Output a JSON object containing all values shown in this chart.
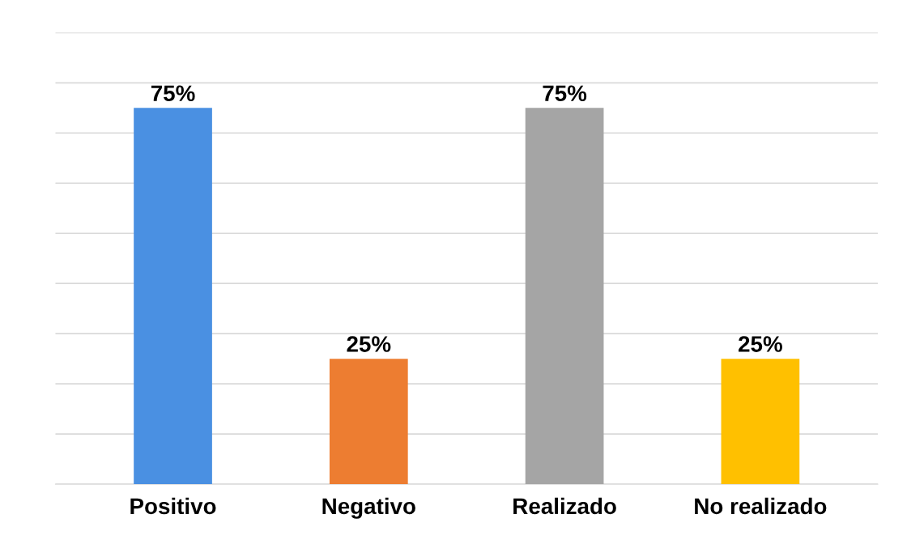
{
  "chart_data": {
    "type": "bar",
    "categories": [
      "Positivo",
      "Negativo",
      "Realizado",
      "No realizado"
    ],
    "values": [
      75,
      25,
      75,
      25
    ],
    "colors": [
      "#4a90e2",
      "#ed7d31",
      "#a5a5a5",
      "#ffc000"
    ],
    "value_labels": [
      "75%",
      "25%",
      "75%",
      "25%"
    ],
    "ylim": [
      0,
      90
    ],
    "yticks": [
      {
        "value": 0,
        "label": null
      },
      {
        "value": 10,
        "label": null
      },
      {
        "value": 20,
        "label": null
      },
      {
        "value": 30,
        "label": null
      },
      {
        "value": 40,
        "label": null
      },
      {
        "value": 50,
        "label": null
      },
      {
        "value": 60,
        "label": null
      },
      {
        "value": 70,
        "label": null
      },
      {
        "value": 80,
        "label": null
      },
      {
        "value": 90,
        "label": null
      }
    ],
    "grid": "y",
    "tick_labels": "x"
  }
}
